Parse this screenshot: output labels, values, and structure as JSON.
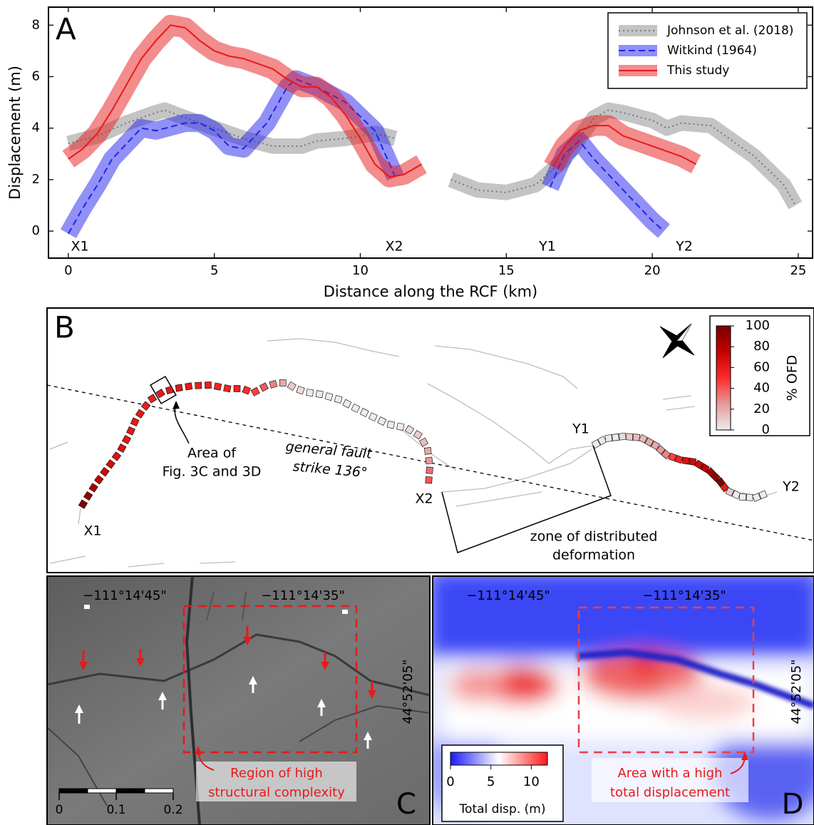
{
  "chart_data": {
    "type": "line",
    "panel_label": "A",
    "x_label": "Distance along the RCF (km)",
    "y_label": "Displacement (m)",
    "xlim": [
      -0.68,
      25.49
    ],
    "ylim": [
      -1.05,
      8.7
    ],
    "xticks": [
      0,
      5,
      10,
      15,
      20,
      25
    ],
    "yticks": [
      0,
      2,
      4,
      6,
      8
    ],
    "legend": "upper right",
    "point_labels": [
      "X1",
      "X2",
      "Y1",
      "Y2"
    ],
    "series": [
      {
        "name": "Johnson et al. (2018)",
        "color": "#8a8a8a",
        "line_style": "dotted",
        "band": 0.3,
        "x": [
          0,
          1,
          2,
          3,
          3.3,
          4,
          5,
          6,
          7,
          8,
          8.5,
          9.5,
          10.5,
          11.2,
          12.5,
          13.1,
          14,
          15,
          16,
          17,
          18,
          18.5,
          19,
          20,
          20.5,
          21,
          22,
          22.5,
          23.5,
          24.5,
          24.9
        ],
        "values": [
          3.4,
          3.7,
          4.2,
          4.6,
          4.7,
          4.4,
          4.0,
          3.6,
          3.3,
          3.3,
          3.5,
          3.6,
          3.8,
          3.6,
          null,
          2.0,
          1.6,
          1.5,
          1.8,
          2.8,
          4.4,
          4.7,
          4.6,
          4.3,
          4.0,
          4.2,
          4.1,
          3.7,
          2.9,
          1.8,
          1.0
        ]
      },
      {
        "name": "Witkind (1964)",
        "color": "#2222ee",
        "line_style": "dashed",
        "band": 0.35,
        "x": [
          0,
          0.5,
          1,
          1.5,
          2.5,
          3,
          4,
          4.5,
          5,
          5.5,
          6,
          6.8,
          7.5,
          7.8,
          8.5,
          9.5,
          10.5,
          11.2,
          13,
          16.5,
          17,
          17.5,
          18,
          19,
          20,
          20.4
        ],
        "values": [
          -0.1,
          0.9,
          1.8,
          2.8,
          4.0,
          3.9,
          4.2,
          4.2,
          3.9,
          3.3,
          3.2,
          4.2,
          5.6,
          5.9,
          5.6,
          5.0,
          3.9,
          2.1,
          null,
          1.7,
          3.0,
          3.5,
          2.8,
          1.6,
          0.4,
          0.0
        ]
      },
      {
        "name": "This study",
        "color": "#e8191a",
        "line_style": "solid",
        "band": 0.4,
        "x": [
          0,
          0.5,
          1,
          1.5,
          2,
          2.5,
          3,
          3.5,
          4,
          4.5,
          5,
          5.5,
          6,
          7,
          7.5,
          8,
          8.5,
          9,
          9.5,
          10,
          10.5,
          11,
          11.5,
          12.1,
          14,
          16.6,
          17,
          17.5,
          18,
          18.5,
          19,
          20,
          21,
          21.5
        ],
        "values": [
          2.8,
          3.2,
          3.8,
          4.7,
          5.7,
          6.7,
          7.4,
          8.0,
          7.9,
          7.4,
          7.0,
          6.8,
          6.7,
          6.3,
          5.9,
          5.6,
          5.6,
          5.2,
          4.5,
          3.6,
          2.6,
          2.1,
          2.2,
          2.6,
          null,
          2.5,
          3.3,
          3.9,
          4.1,
          4.1,
          3.7,
          3.3,
          2.9,
          2.6
        ]
      }
    ]
  },
  "panel_b": {
    "panel_label": "B",
    "area_label": [
      "Area of",
      "Fig. 3C and 3D"
    ],
    "strike_label": [
      "general fault",
      "strike 136°"
    ],
    "zone_label": [
      "zone of distributed",
      "deformation"
    ],
    "trace_labels": [
      "X1",
      "X2",
      "Y1",
      "Y2"
    ],
    "colorbar_label": "% OFD",
    "colorbar_lim": [
      0,
      100
    ],
    "colorbar_ticks": [
      0,
      20,
      40,
      60,
      80,
      100
    ],
    "colormap": [
      "#ececec",
      "#e59a9a",
      "#ff2a2a",
      "#c40000",
      "#780000"
    ],
    "ofd_x1_x2": [
      95,
      90,
      85,
      75,
      70,
      68,
      65,
      65,
      62,
      62,
      60,
      60,
      58,
      58,
      60,
      62,
      62,
      60,
      58,
      58,
      55,
      55,
      55,
      50,
      45,
      40,
      30,
      20,
      10,
      5,
      0,
      0,
      0,
      0,
      0,
      0,
      0,
      0,
      0,
      0,
      0,
      5,
      10,
      15,
      20,
      25,
      35,
      40
    ],
    "ofd_y1_y2": [
      0,
      0,
      0,
      0,
      5,
      10,
      15,
      15,
      20,
      20,
      25,
      30,
      45,
      55,
      65,
      70,
      70,
      75,
      85,
      90,
      95,
      60,
      10,
      0,
      0,
      0,
      0,
      0
    ]
  },
  "panel_c": {
    "panel_label": "C",
    "lon_labels": [
      "−111°14'45\"",
      "−111°14'35\""
    ],
    "lat_label": "44°52'05\"",
    "note": [
      "Region of high",
      "structural complexity"
    ],
    "scale_ticks": [
      0,
      0.1,
      0.2
    ]
  },
  "panel_d": {
    "panel_label": "D",
    "lon_labels": [
      "−111°14'45\"",
      "−111°14'35\""
    ],
    "lat_label": "44°52'05\"",
    "note": [
      "Area with a high",
      "total displacement"
    ],
    "colorbar_label": "Total disp. (m)",
    "colorbar_lim": [
      0,
      12
    ],
    "colorbar_ticks": [
      0,
      5,
      10
    ],
    "colormap": [
      "#1a1aff",
      "#ffffff",
      "#ff1a1a"
    ]
  }
}
